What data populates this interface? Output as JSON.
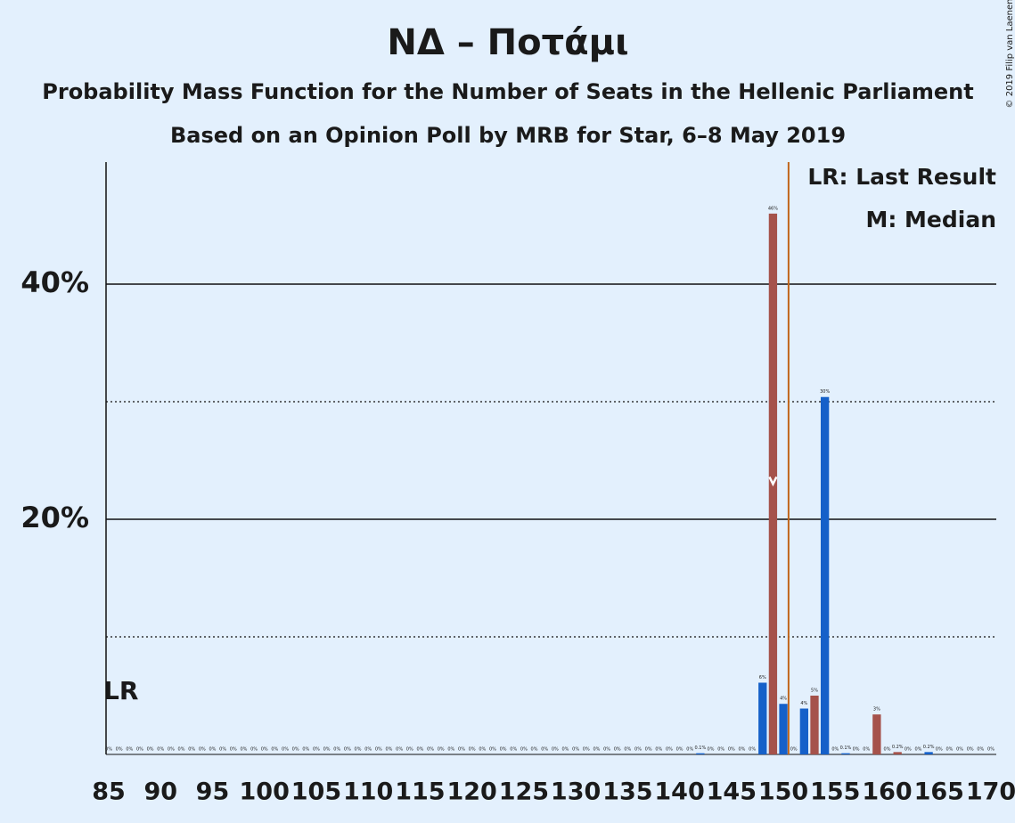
{
  "chart_data": {
    "type": "bar",
    "title": "ΝΔ – Ποτάμι",
    "subtitle": "Probability Mass Function for the Number of Seats in the Hellenic Parliament",
    "subtitle2": "Based on an Opinion Poll by MRB for Star, 6–8 May 2019",
    "legend_notes": [
      "LR: Last Result",
      "M: Median"
    ],
    "annotation": "LR",
    "credit": "© 2019 Filip van Laenen",
    "x": [
      85,
      86,
      87,
      88,
      89,
      90,
      91,
      92,
      93,
      94,
      95,
      96,
      97,
      98,
      99,
      100,
      101,
      102,
      103,
      104,
      105,
      106,
      107,
      108,
      109,
      110,
      111,
      112,
      113,
      114,
      115,
      116,
      117,
      118,
      119,
      120,
      121,
      122,
      123,
      124,
      125,
      126,
      127,
      128,
      129,
      130,
      131,
      132,
      133,
      134,
      135,
      136,
      137,
      138,
      139,
      140,
      141,
      142,
      143,
      144,
      145,
      146,
      147,
      148,
      149,
      150,
      151,
      152,
      153,
      154,
      155,
      156,
      157,
      158,
      159,
      160,
      161,
      162,
      163,
      164,
      165,
      166,
      167,
      168,
      169,
      170
    ],
    "values": [
      0,
      0,
      0,
      0,
      0,
      0,
      0,
      0,
      0,
      0,
      0,
      0,
      0,
      0,
      0,
      0,
      0,
      0,
      0,
      0,
      0,
      0,
      0,
      0,
      0,
      0,
      0,
      0,
      0,
      0,
      0,
      0,
      0,
      0,
      0,
      0,
      0,
      0,
      0,
      0,
      0,
      0,
      0,
      0,
      0,
      0,
      0,
      0,
      0,
      0,
      0,
      0,
      0,
      0,
      0,
      0,
      0,
      0.1,
      0,
      0,
      0,
      0,
      0,
      6.1,
      46,
      4.3,
      0,
      3.9,
      5,
      30.4,
      0,
      0.1,
      0,
      0,
      3.4,
      0,
      0.2,
      0,
      0,
      0.2,
      0,
      0,
      0,
      0,
      0,
      0
    ],
    "value_labels": [
      "0%",
      "0%",
      "0%",
      "0%",
      "0%",
      "0%",
      "0%",
      "0%",
      "0%",
      "0%",
      "0%",
      "0%",
      "0%",
      "0%",
      "0%",
      "0%",
      "0%",
      "0%",
      "0%",
      "0%",
      "0%",
      "0%",
      "0%",
      "0%",
      "0%",
      "0%",
      "0%",
      "0%",
      "0%",
      "0%",
      "0%",
      "0%",
      "0%",
      "0%",
      "0%",
      "0%",
      "0%",
      "0%",
      "0%",
      "0%",
      "0%",
      "0%",
      "0%",
      "0%",
      "0%",
      "0%",
      "0%",
      "0%",
      "0%",
      "0%",
      "0%",
      "0%",
      "0%",
      "0%",
      "0%",
      "0%",
      "0%",
      "0.1%",
      "0%",
      "0%",
      "0%",
      "0%",
      "0%",
      "6%",
      "46%",
      "4%",
      "0%",
      "4%",
      "5%",
      "30%",
      "0%",
      "0.1%",
      "0%",
      "0%",
      "3%",
      "0%",
      "0.2%",
      "0%",
      "0%",
      "0.2%",
      "0%",
      "0%",
      "0%",
      "0%",
      "0%",
      "0%"
    ],
    "bar_colors": [
      "#1560c9",
      "#a5524b"
    ],
    "median": 149,
    "threshold_line": 150.5,
    "threshold_color": "#c0651a",
    "xlim": [
      85,
      170
    ],
    "xticks": [
      85,
      90,
      95,
      100,
      105,
      110,
      115,
      120,
      125,
      130,
      135,
      140,
      145,
      150,
      155,
      160,
      165,
      170
    ],
    "ylim": [
      0,
      50
    ],
    "yticks": [
      {
        "value": 20,
        "label": "20%"
      },
      {
        "value": 40,
        "label": "40%"
      }
    ],
    "minor_yticks": [
      10,
      30
    ],
    "grid": true
  }
}
